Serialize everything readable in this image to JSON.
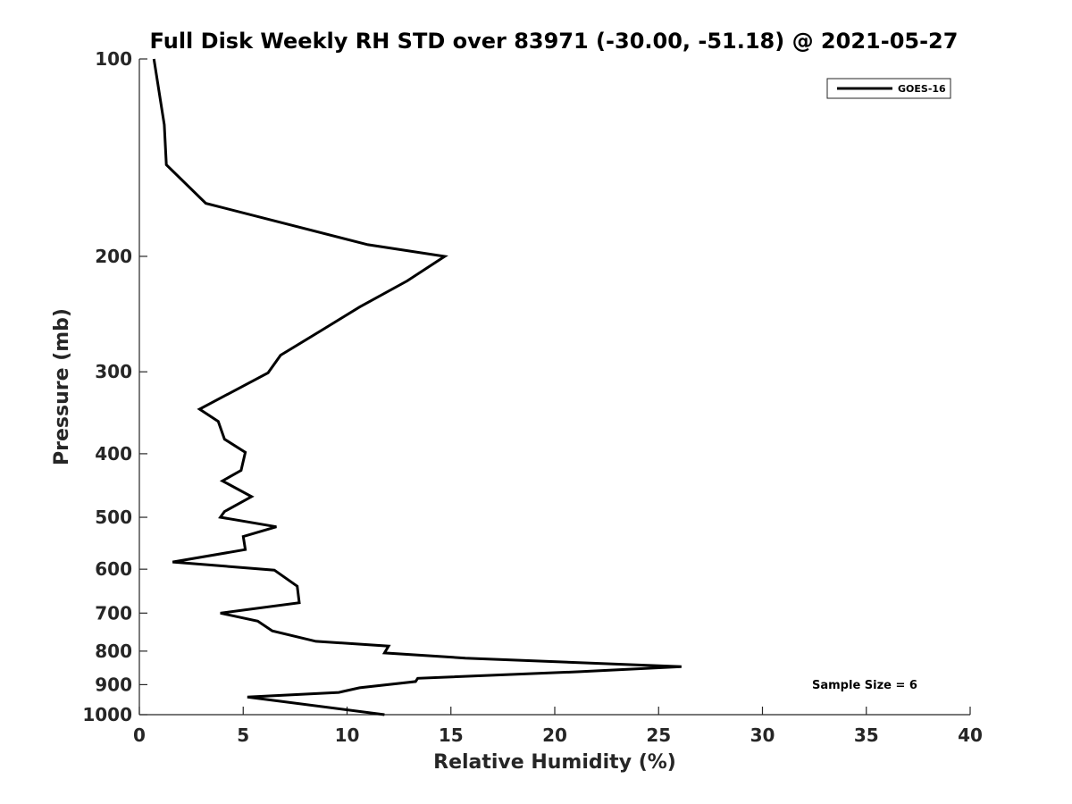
{
  "chart_data": {
    "type": "line",
    "title": "Full Disk Weekly RH STD over 83971 (-30.00, -51.18) @ 2021-05-27",
    "xlabel": "Relative Humidity (%)",
    "ylabel": "Pressure (mb)",
    "xlim": [
      0,
      40
    ],
    "ylim": [
      100,
      1000
    ],
    "y_scale": "log",
    "y_reversed": true,
    "xticks": [
      0,
      5,
      10,
      15,
      20,
      25,
      30,
      35,
      40
    ],
    "xtick_labels": [
      "0",
      "5",
      "10",
      "15",
      "20",
      "25",
      "30",
      "35",
      "40"
    ],
    "yticks": [
      100,
      200,
      300,
      400,
      500,
      600,
      700,
      800,
      900,
      1000
    ],
    "ytick_labels": [
      "100",
      "200",
      "300",
      "400",
      "500",
      "600",
      "700",
      "800",
      "900",
      "1000"
    ],
    "grid": false,
    "legend_position": "top-right",
    "annotation": "Sample Size = 6",
    "series": [
      {
        "name": "GOES-16",
        "color": "#000000",
        "x": [
          0.7,
          1.2,
          1.3,
          3.2,
          11.0,
          14.7,
          12.9,
          10.6,
          8.8,
          6.8,
          6.2,
          2.9,
          3.8,
          4.1,
          5.1,
          4.9,
          4.0,
          5.4,
          4.1,
          3.9,
          6.6,
          5.0,
          5.1,
          1.6,
          6.5,
          7.6,
          7.7,
          3.9,
          5.7,
          6.4,
          8.5,
          12.0,
          11.8,
          15.7,
          26.1,
          21.2,
          13.4,
          13.3,
          10.6,
          9.6,
          5.2,
          11.8
        ],
        "y": [
          100,
          126,
          145,
          166,
          192,
          200,
          218,
          239,
          259,
          283,
          301,
          342,
          357,
          380,
          398,
          424,
          440,
          465,
          490,
          500,
          517,
          535,
          560,
          585,
          602,
          637,
          675,
          700,
          720,
          745,
          773,
          786,
          805,
          820,
          845,
          860,
          880,
          890,
          910,
          925,
          940,
          1000
        ]
      }
    ]
  }
}
